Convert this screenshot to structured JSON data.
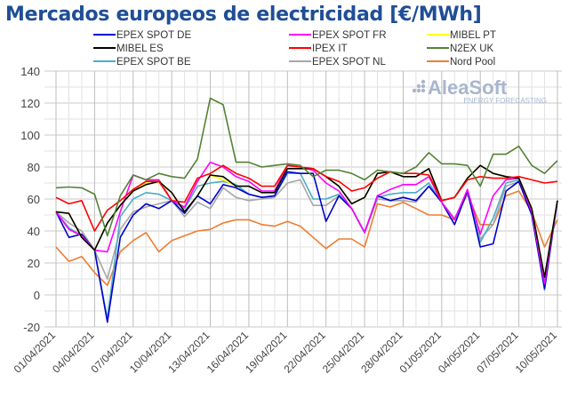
{
  "chart_data": {
    "type": "line",
    "title": "Mercados europeos de electricidad [€/MWh]",
    "xlabel": "",
    "ylabel": "",
    "ylim": [
      -20,
      140
    ],
    "yticks": [
      -20,
      0,
      20,
      40,
      60,
      80,
      100,
      120,
      140
    ],
    "grid": true,
    "legend_position": "top",
    "x": [
      "01/04/2021",
      "02/04/2021",
      "03/04/2021",
      "04/04/2021",
      "05/04/2021",
      "06/04/2021",
      "07/04/2021",
      "08/04/2021",
      "09/04/2021",
      "10/04/2021",
      "11/04/2021",
      "12/04/2021",
      "13/04/2021",
      "14/04/2021",
      "15/04/2021",
      "16/04/2021",
      "17/04/2021",
      "18/04/2021",
      "19/04/2021",
      "20/04/2021",
      "21/04/2021",
      "22/04/2021",
      "23/04/2021",
      "24/04/2021",
      "25/04/2021",
      "26/04/2021",
      "27/04/2021",
      "28/04/2021",
      "29/04/2021",
      "30/04/2021",
      "01/05/2021",
      "02/05/2021",
      "03/05/2021",
      "04/05/2021",
      "05/05/2021",
      "06/05/2021",
      "07/05/2021",
      "08/05/2021",
      "09/05/2021",
      "10/05/2021"
    ],
    "xtick_labels": [
      "01/04/2021",
      "04/04/2021",
      "07/04/2021",
      "10/04/2021",
      "13/04/2021",
      "16/04/2021",
      "19/04/2021",
      "22/04/2021",
      "25/04/2021",
      "28/04/2021",
      "01/05/2021",
      "04/05/2021",
      "07/05/2021",
      "10/05/2021"
    ],
    "series": [
      {
        "name": "Nord Pool",
        "color": "#ed7d31",
        "values": [
          30,
          21,
          24,
          14,
          6,
          27,
          34,
          39,
          27,
          34,
          37,
          40,
          41,
          45,
          47,
          47,
          44,
          43,
          46,
          43,
          36,
          29,
          35,
          35,
          30,
          57,
          55,
          58,
          54,
          50,
          50,
          47,
          63,
          44,
          44,
          62,
          65,
          52,
          30,
          47
        ]
      },
      {
        "name": "EPEX SPOT NL",
        "color": "#a6a6a6",
        "values": [
          52,
          45,
          40,
          28,
          10,
          41,
          52,
          55,
          57,
          59,
          49,
          58,
          54,
          67,
          61,
          59,
          60,
          61,
          70,
          72,
          56,
          56,
          62,
          54,
          39,
          60,
          59,
          59,
          58,
          68,
          58,
          48,
          64,
          35,
          44,
          68,
          71,
          52,
          11,
          59
        ]
      },
      {
        "name": "EPEX SPOT BE",
        "color": "#4bacc6",
        "values": [
          52,
          42,
          37,
          28,
          -15,
          49,
          60,
          64,
          63,
          59,
          54,
          68,
          70,
          71,
          69,
          63,
          61,
          62,
          76,
          76,
          60,
          60,
          63,
          54,
          39,
          61,
          63,
          64,
          64,
          70,
          58,
          47,
          65,
          33,
          48,
          70,
          72,
          52,
          3,
          59
        ]
      },
      {
        "name": "EPEX SPOT DE",
        "color": "#0000cc",
        "values": [
          52,
          36,
          38,
          28,
          -17,
          36,
          50,
          57,
          54,
          59,
          51,
          62,
          57,
          69,
          67,
          63,
          61,
          62,
          77,
          76,
          76,
          46,
          62,
          54,
          39,
          62,
          59,
          61,
          59,
          68,
          58,
          44,
          65,
          30,
          32,
          65,
          71,
          50,
          4,
          59
        ]
      },
      {
        "name": "EPEX SPOT FR",
        "color": "#ff00ff",
        "values": [
          52,
          41,
          37,
          28,
          27,
          52,
          75,
          72,
          72,
          59,
          55,
          71,
          83,
          80,
          74,
          71,
          65,
          65,
          81,
          80,
          78,
          70,
          65,
          54,
          39,
          62,
          66,
          69,
          69,
          74,
          58,
          47,
          66,
          38,
          62,
          72,
          73,
          52,
          7,
          59
        ]
      },
      {
        "name": "MIBEL PT",
        "color": "#ffff00",
        "values": [
          52,
          51,
          36,
          28,
          45,
          56,
          65,
          70,
          70,
          64,
          52,
          62,
          75,
          72,
          68,
          68,
          64,
          64,
          79,
          79,
          79,
          74,
          68,
          57,
          61,
          76,
          77,
          74,
          74,
          79,
          59,
          61,
          73,
          81,
          76,
          74,
          73,
          54,
          11,
          59
        ]
      },
      {
        "name": "MIBEL ES",
        "color": "#000000",
        "values": [
          52,
          51,
          36,
          28,
          45,
          56,
          65,
          69,
          71,
          64,
          52,
          62,
          75,
          74,
          68,
          68,
          64,
          64,
          79,
          79,
          79,
          74,
          68,
          57,
          61,
          76,
          77,
          74,
          74,
          79,
          59,
          61,
          73,
          81,
          76,
          74,
          73,
          54,
          11,
          59
        ]
      },
      {
        "name": "IPEX IT",
        "color": "#ff0000",
        "values": [
          61,
          57,
          59,
          40,
          53,
          59,
          66,
          71,
          71,
          59,
          58,
          73,
          76,
          81,
          76,
          73,
          68,
          68,
          81,
          80,
          79,
          74,
          71,
          65,
          67,
          73,
          77,
          76,
          76,
          75,
          59,
          61,
          72,
          74,
          73,
          73,
          74,
          72,
          70,
          71
        ]
      },
      {
        "name": "N2EX UK",
        "color": "#548235",
        "values": [
          67,
          67.5,
          67,
          63,
          37,
          62,
          75,
          72,
          76,
          74,
          73,
          85,
          123,
          119,
          83,
          83,
          80,
          81,
          82,
          81,
          74,
          78,
          78,
          76,
          72,
          78,
          77,
          76,
          80,
          89,
          82,
          82,
          81,
          68,
          88,
          88,
          93,
          81,
          76,
          84
        ]
      }
    ],
    "legend_order": [
      "EPEX SPOT DE",
      "EPEX SPOT FR",
      "MIBEL PT",
      "MIBEL ES",
      "IPEX IT",
      "N2EX UK",
      "EPEX SPOT BE",
      "EPEX SPOT NL",
      "Nord Pool"
    ]
  },
  "logo": {
    "name": "AleaSoft",
    "tagline": "ENERGY FORECASTING"
  }
}
